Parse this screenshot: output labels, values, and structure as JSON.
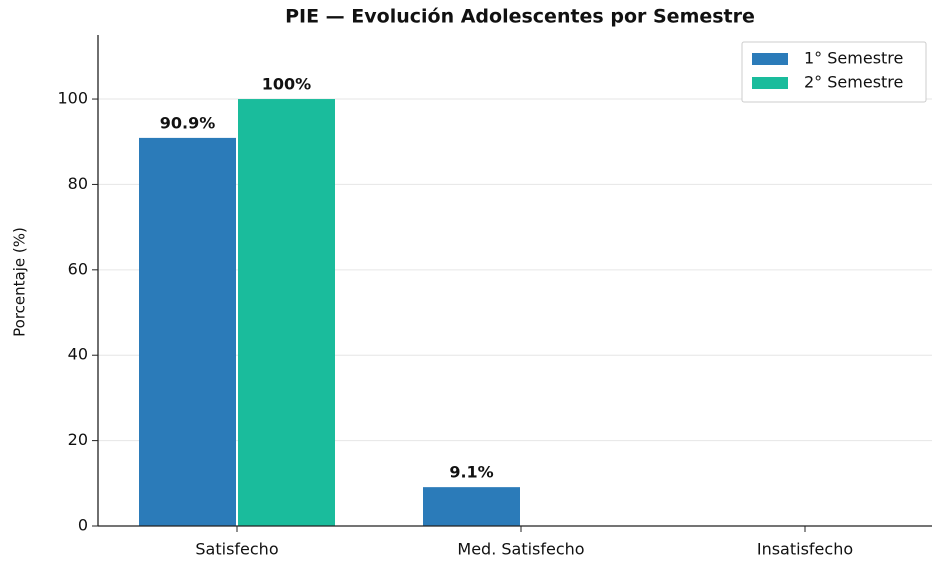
{
  "chart_data": {
    "type": "bar",
    "title": "PIE — Evolución Adolescentes por Semestre",
    "y_label": "Porcentaje (%)",
    "categories": [
      "Satisfecho",
      "Med. Satisfecho",
      "Insatisfecho"
    ],
    "series": [
      {
        "name": "1° Semestre",
        "color": "#2b7bb9",
        "values": [
          90.9,
          9.1,
          0
        ],
        "value_labels": [
          "90.9%",
          "9.1%",
          null
        ]
      },
      {
        "name": "2° Semestre",
        "color": "#1abc9c",
        "values": [
          100,
          0,
          0
        ],
        "value_labels": [
          "100%",
          null,
          null
        ]
      }
    ],
    "ylim": [
      0,
      115
    ],
    "yticks": [
      0,
      20,
      40,
      60,
      80,
      100
    ],
    "grid": true,
    "legend": "upper right"
  }
}
